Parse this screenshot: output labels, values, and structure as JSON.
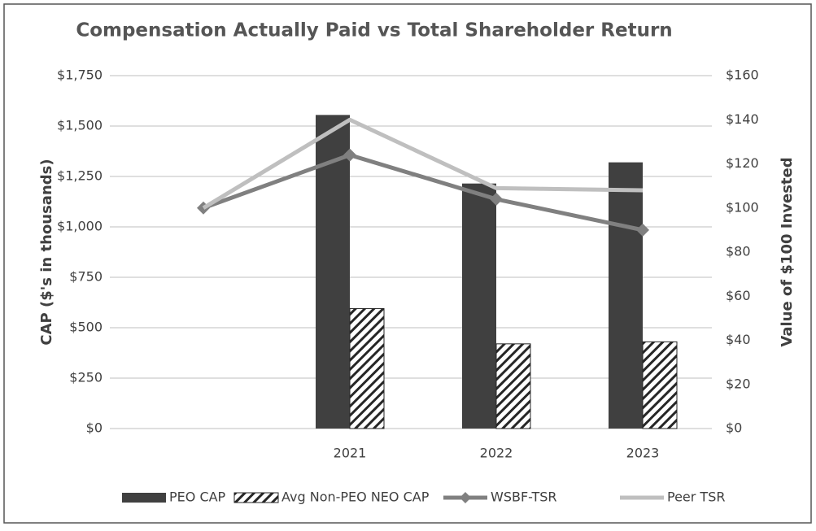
{
  "chart_data": {
    "type": "bar-line",
    "title": "Compensation Actually Paid vs Total Shareholder Return",
    "y_label": "CAP ($'s in thousands)",
    "y2_label": "Value of $100 Invested",
    "categories": [
      null,
      "2021",
      "2022",
      "2023"
    ],
    "series": [
      {
        "name": "PEO CAP",
        "type": "bar",
        "color": "#404040",
        "values": [
          null,
          1555,
          1215,
          1320
        ]
      },
      {
        "name": "Avg Non-PEO NEO CAP",
        "type": "bar",
        "color": "#262626",
        "hatch": true,
        "values": [
          null,
          595,
          420,
          430
        ]
      },
      {
        "name": "WSBF-TSR",
        "type": "line",
        "axis": "y2",
        "color": "#808080",
        "marker": "diamond",
        "values": [
          100,
          124,
          104,
          90
        ]
      },
      {
        "name": "Peer TSR",
        "type": "line",
        "axis": "y2",
        "color": "#bfbfbf",
        "values": [
          100,
          140,
          109,
          108
        ]
      }
    ],
    "ylim": [
      0,
      1750
    ],
    "yticks": [
      {
        "value": 0,
        "label": "$0"
      },
      {
        "value": 250,
        "label": "$250"
      },
      {
        "value": 500,
        "label": "$500"
      },
      {
        "value": 750,
        "label": "$750"
      },
      {
        "value": 1000,
        "label": "$1,000"
      },
      {
        "value": 1250,
        "label": "$1,250"
      },
      {
        "value": 1500,
        "label": "$1,500"
      },
      {
        "value": 1750,
        "label": "$1,750"
      }
    ],
    "y2lim": [
      0,
      160
    ],
    "y2ticks": [
      {
        "value": 0,
        "label": "$0"
      },
      {
        "value": 20,
        "label": "$20"
      },
      {
        "value": 40,
        "label": "$40"
      },
      {
        "value": 60,
        "label": "$60"
      },
      {
        "value": 80,
        "label": "$80"
      },
      {
        "value": 100,
        "label": "$100"
      },
      {
        "value": 120,
        "label": "$120"
      },
      {
        "value": 140,
        "label": "$140"
      },
      {
        "value": 160,
        "label": "$160"
      }
    ],
    "grid": true,
    "legend": "bottom"
  }
}
